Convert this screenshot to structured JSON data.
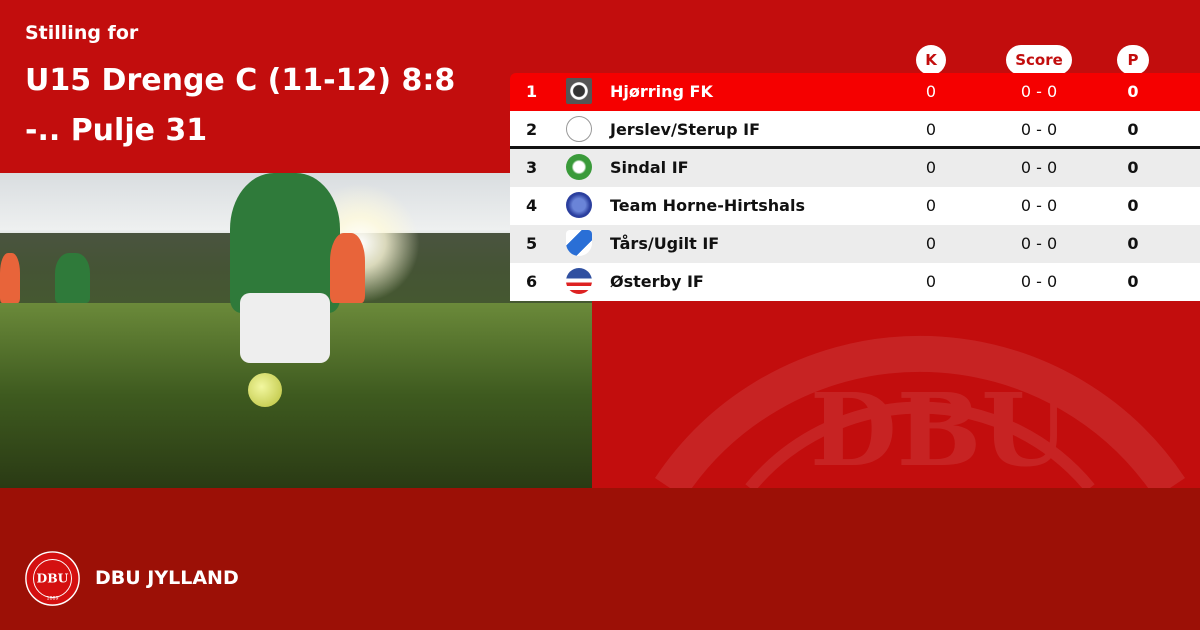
{
  "header": {
    "subtitle": "Stilling for",
    "title": "U15 Drenge C (11-12) 8:8 -.. Pulje 31"
  },
  "columns": {
    "k": "K",
    "score": "Score",
    "p": "P"
  },
  "rows": [
    {
      "rank": "1",
      "team": "Hjørring FK",
      "k": "0",
      "score": "0 - 0",
      "p": "0",
      "logo": "hjorring-fk-crest"
    },
    {
      "rank": "2",
      "team": "Jerslev/Sterup IF",
      "k": "0",
      "score": "0 - 0",
      "p": "0",
      "logo": "jerslev-sterup-crest"
    },
    {
      "rank": "3",
      "team": "Sindal IF",
      "k": "0",
      "score": "0 - 0",
      "p": "0",
      "logo": "sindal-if-crest"
    },
    {
      "rank": "4",
      "team": "Team Horne-Hirtshals",
      "k": "0",
      "score": "0 - 0",
      "p": "0",
      "logo": "team-horne-hirtshals-crest"
    },
    {
      "rank": "5",
      "team": "Tårs/Ugilt IF",
      "k": "0",
      "score": "0 - 0",
      "p": "0",
      "logo": "tars-ugilt-crest"
    },
    {
      "rank": "6",
      "team": "Østerby IF",
      "k": "0",
      "score": "0 - 0",
      "p": "0",
      "logo": "osterby-if-crest"
    }
  ],
  "footer": {
    "brand": "DBU JYLLAND",
    "logo_text": "DANSK BOLDSPIL-UNION 1889"
  },
  "colors": {
    "background": "#c20d0d",
    "footer": "#9c1006",
    "highlight": "#f50000",
    "alt_row": "#ececec"
  }
}
